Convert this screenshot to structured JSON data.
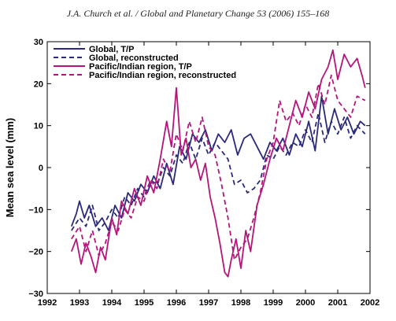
{
  "page": {
    "running_header": "J.A. Church et al. / Global and Planetary Change 53 (2006) 155–168"
  },
  "chart_data": {
    "type": "line",
    "title": "",
    "xlabel": "",
    "ylabel": "Mean sea level (mm)",
    "xlim": [
      1992.0,
      2002.0
    ],
    "ylim": [
      -30,
      30
    ],
    "x_ticks": [
      1992,
      1993,
      1994,
      1995,
      1996,
      1997,
      1998,
      1999,
      2000,
      2001,
      2002
    ],
    "y_ticks": [
      -30,
      -20,
      -10,
      0,
      10,
      20,
      30
    ],
    "x_tick_labels": [
      "1992",
      "1993",
      "1994",
      "1995",
      "1996",
      "1997",
      "1998",
      "1999",
      "2000",
      "2001",
      "2002"
    ],
    "y_tick_labels": [
      "−30",
      "−20",
      "−10",
      "0",
      "10",
      "20",
      "30"
    ],
    "grid": false,
    "legend_position": "top-left",
    "series": [
      {
        "name": "Global, T/P",
        "color": "#2b2a7a",
        "dash": "solid",
        "x": [
          1992.75,
          1992.9,
          1993.0,
          1993.15,
          1993.3,
          1993.5,
          1993.7,
          1993.9,
          1994.1,
          1994.3,
          1994.5,
          1994.7,
          1994.9,
          1995.1,
          1995.3,
          1995.5,
          1995.7,
          1995.9,
          1996.1,
          1996.3,
          1996.5,
          1996.7,
          1996.9,
          1997.1,
          1997.3,
          1997.5,
          1997.7,
          1997.9,
          1998.1,
          1998.3,
          1998.5,
          1998.7,
          1998.9,
          1999.1,
          1999.3,
          1999.5,
          1999.7,
          1999.9,
          2000.1,
          2000.3,
          2000.5,
          2000.7,
          2000.9,
          2001.1,
          2001.3,
          2001.5,
          2001.7,
          2001.85
        ],
        "y": [
          -14,
          -11,
          -8,
          -12,
          -9,
          -14,
          -12,
          -15,
          -9,
          -12,
          -6,
          -8,
          -4,
          -6,
          -2,
          -5,
          1,
          -4,
          5,
          2,
          8,
          6,
          9,
          4,
          8,
          6,
          9,
          3,
          7,
          8,
          5,
          2,
          6,
          4,
          7,
          3,
          8,
          5,
          11,
          4,
          17,
          8,
          14,
          9,
          12,
          8,
          11,
          10
        ]
      },
      {
        "name": "Global, reconstructed",
        "color": "#2b2a7a",
        "dash": "dashed",
        "x": [
          1992.75,
          1993.0,
          1993.2,
          1993.4,
          1993.6,
          1993.8,
          1994.0,
          1994.2,
          1994.4,
          1994.6,
          1994.8,
          1995.0,
          1995.2,
          1995.4,
          1995.6,
          1995.8,
          1996.0,
          1996.2,
          1996.4,
          1996.6,
          1996.8,
          1997.0,
          1997.2,
          1997.4,
          1997.6,
          1997.8,
          1998.0,
          1998.2,
          1998.4,
          1998.6,
          1998.8,
          1999.0,
          1999.2,
          1999.4,
          1999.6,
          1999.8,
          2000.0,
          2000.2,
          2000.4,
          2000.6,
          2000.8,
          2001.0,
          2001.2,
          2001.4,
          2001.6,
          2001.85
        ],
        "y": [
          -15,
          -12,
          -14,
          -9,
          -15,
          -13,
          -10,
          -12,
          -7,
          -9,
          -5,
          -7,
          -3,
          -4,
          0,
          -2,
          3,
          1,
          6,
          2,
          7,
          3,
          6,
          4,
          2,
          -4,
          -3,
          -6,
          -5,
          -3,
          3,
          2,
          5,
          3,
          6,
          5,
          9,
          6,
          13,
          6,
          11,
          8,
          12,
          7,
          10,
          8
        ]
      },
      {
        "name": "Pacific/Indian region, T/P",
        "color": "#b5157a",
        "dash": "solid",
        "x": [
          1992.75,
          1992.9,
          1993.05,
          1993.2,
          1993.35,
          1993.5,
          1993.65,
          1993.8,
          1994.0,
          1994.15,
          1994.3,
          1994.5,
          1994.7,
          1994.9,
          1995.1,
          1995.3,
          1995.5,
          1995.7,
          1995.85,
          1996.0,
          1996.15,
          1996.3,
          1996.45,
          1996.6,
          1996.75,
          1996.9,
          1997.05,
          1997.2,
          1997.35,
          1997.5,
          1997.6,
          1997.7,
          1997.85,
          1998.0,
          1998.15,
          1998.3,
          1998.5,
          1998.7,
          1998.9,
          1999.1,
          1999.3,
          1999.5,
          1999.7,
          1999.9,
          2000.1,
          2000.3,
          2000.5,
          2000.7,
          2000.85,
          2001.0,
          2001.2,
          2001.4,
          2001.6,
          2001.75,
          2001.85
        ],
        "y": [
          -20,
          -17,
          -23,
          -18,
          -21,
          -25,
          -19,
          -22,
          -12,
          -16,
          -8,
          -11,
          -5,
          -9,
          -2,
          -6,
          2,
          11,
          5,
          19,
          3,
          7,
          0,
          2,
          -3,
          1,
          -7,
          -12,
          -18,
          -25,
          -26,
          -22,
          -17,
          -24,
          -15,
          -20,
          -9,
          -4,
          2,
          7,
          4,
          10,
          16,
          12,
          18,
          14,
          21,
          24,
          28,
          21,
          27,
          24,
          26,
          22,
          19
        ]
      },
      {
        "name": "Pacific/Indian region, reconstructed",
        "color": "#b5157a",
        "dash": "dashed",
        "x": [
          1992.75,
          1993.0,
          1993.2,
          1993.4,
          1993.6,
          1993.8,
          1994.0,
          1994.2,
          1994.4,
          1994.6,
          1994.8,
          1995.0,
          1995.2,
          1995.4,
          1995.6,
          1995.8,
          1996.0,
          1996.2,
          1996.4,
          1996.6,
          1996.8,
          1997.0,
          1997.2,
          1997.4,
          1997.6,
          1997.8,
          1998.0,
          1998.2,
          1998.4,
          1998.6,
          1998.8,
          1999.0,
          1999.2,
          1999.4,
          1999.6,
          1999.8,
          2000.0,
          2000.2,
          2000.4,
          2000.6,
          2000.8,
          2001.0,
          2001.2,
          2001.4,
          2001.6,
          2001.85
        ],
        "y": [
          -17,
          -14,
          -20,
          -15,
          -21,
          -18,
          -13,
          -15,
          -10,
          -12,
          -7,
          -8,
          -3,
          -5,
          2,
          -1,
          8,
          4,
          11,
          6,
          12,
          5,
          3,
          -4,
          -12,
          -22,
          -19,
          -17,
          -12,
          -6,
          2,
          6,
          16,
          11,
          13,
          10,
          15,
          12,
          20,
          15,
          22,
          16,
          14,
          12,
          17,
          16
        ]
      }
    ]
  }
}
